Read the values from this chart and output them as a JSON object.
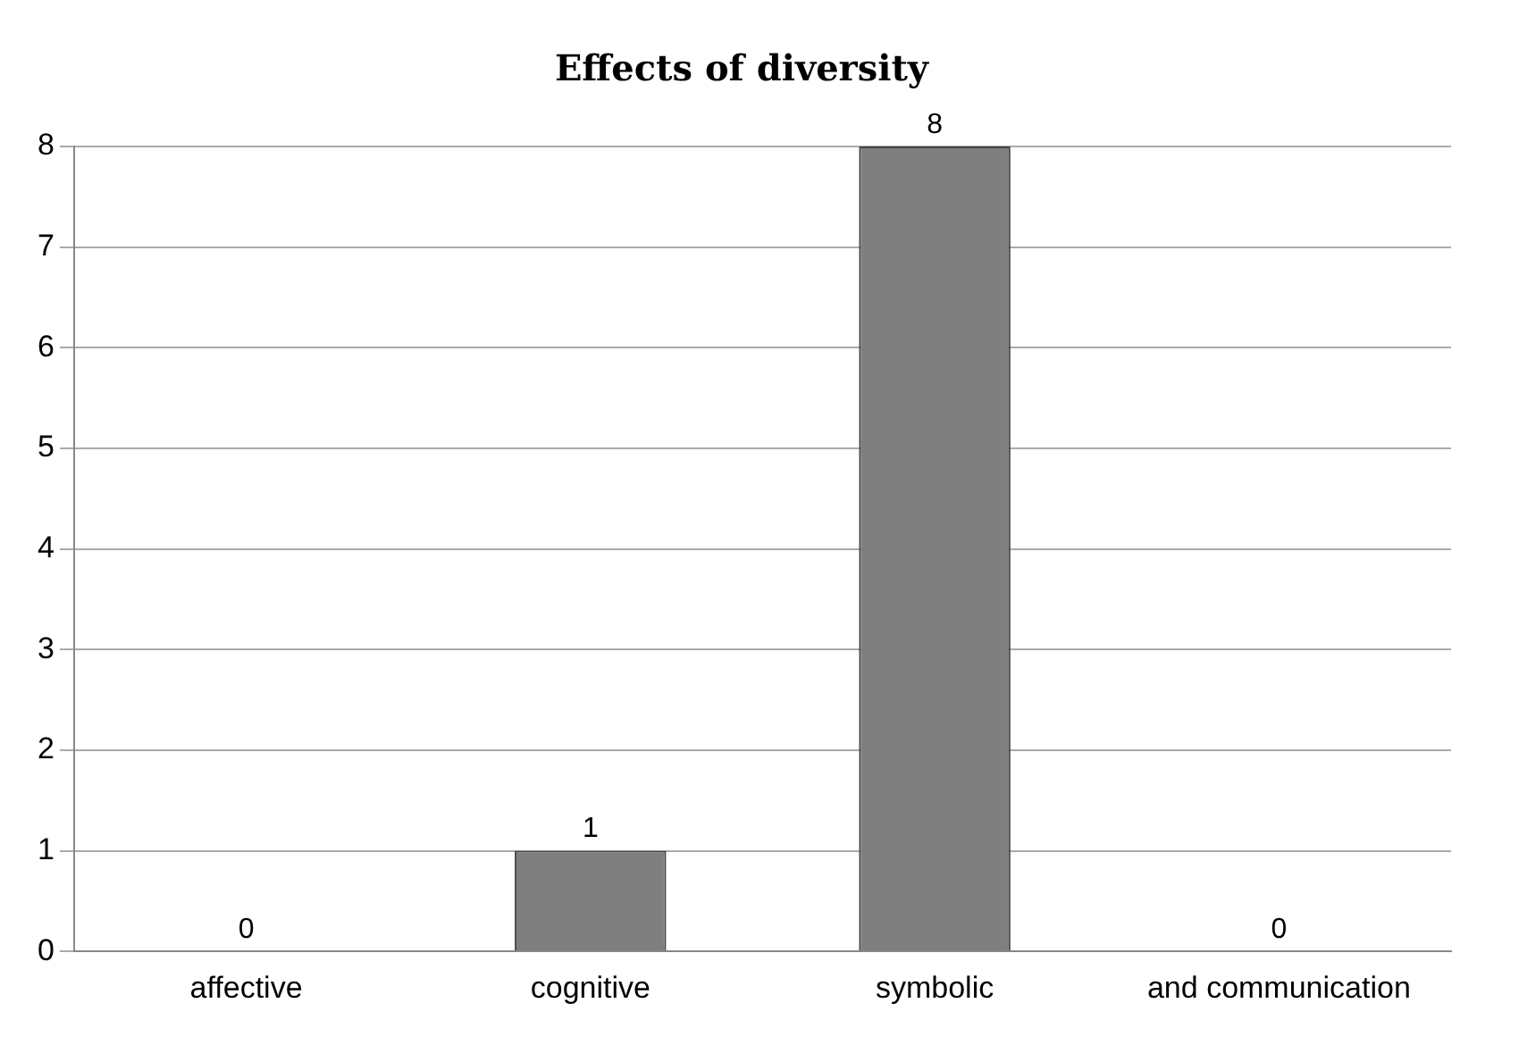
{
  "chart_data": {
    "type": "bar",
    "title": "Effects of diversity",
    "categories": [
      "affective",
      "cognitive",
      "symbolic",
      "and communication"
    ],
    "values": [
      0,
      1,
      8,
      0
    ],
    "color": "#7f7f7f",
    "ylim": [
      0,
      8
    ],
    "yticks": [
      0,
      1,
      2,
      3,
      4,
      5,
      6,
      7,
      8
    ],
    "grid": "y",
    "data_labels": true
  }
}
